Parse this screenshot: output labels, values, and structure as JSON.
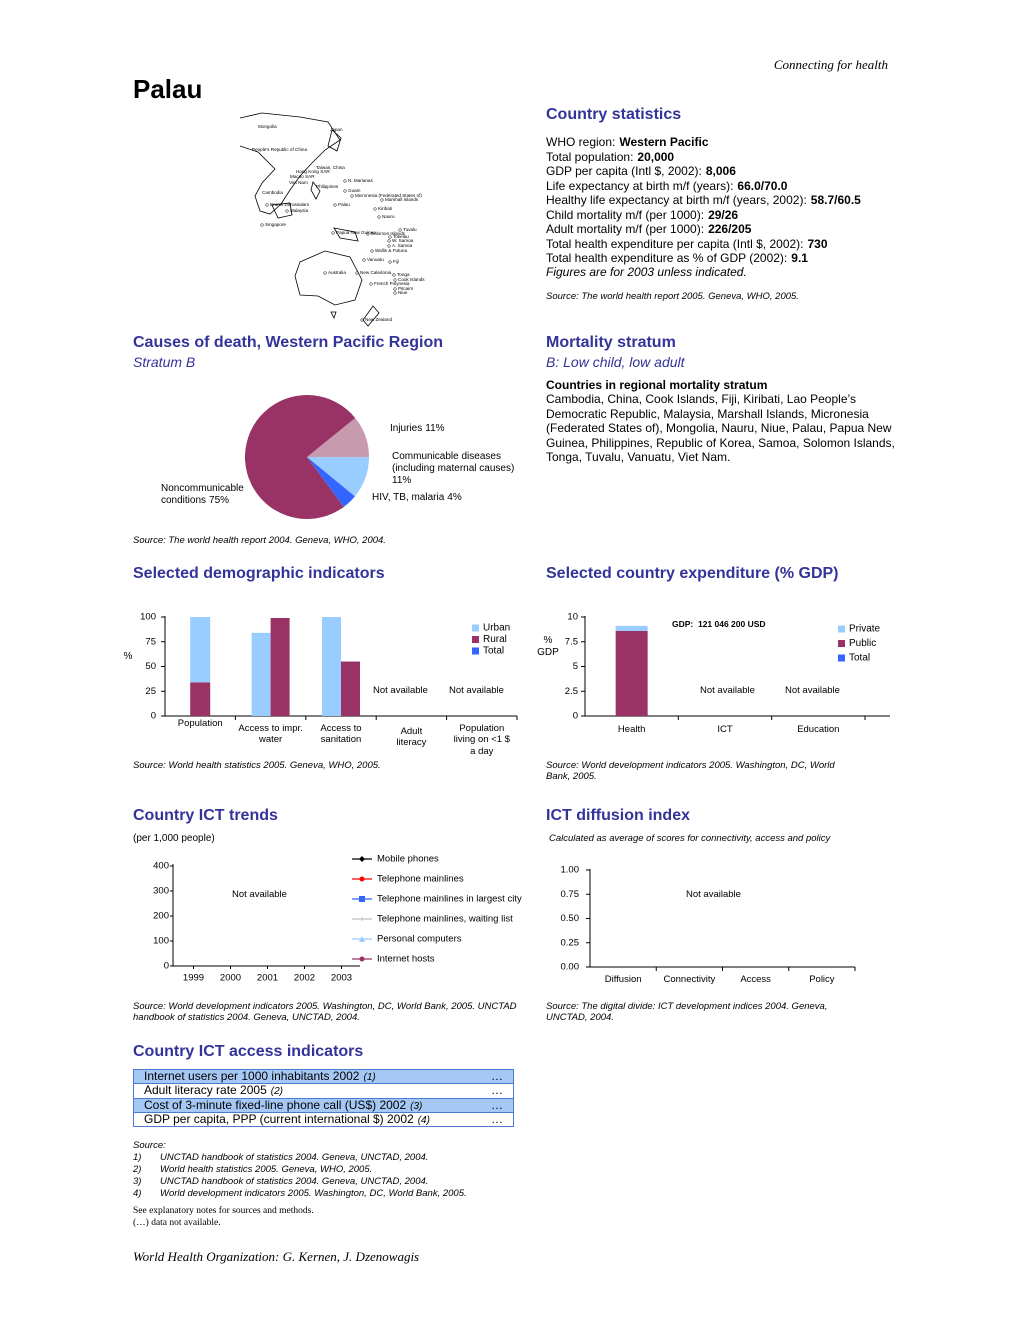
{
  "header": {
    "running_head": "Connecting for health",
    "title": "Palau"
  },
  "map": {
    "labels": [
      "Mongolia",
      "Japan",
      "People's Republic of China",
      "Taiwan, China",
      "Hong Kong SAR",
      "Macao SAR",
      "Viet Nam",
      "Cambodia",
      "Philippines",
      "N. Marianas",
      "Guam",
      "Micronesia (Federated States of)",
      "Marshall Islands",
      "Palau",
      "Brunei Darussalam",
      "Malaysia",
      "Kiribati",
      "Nauru",
      "Singapore",
      "Papua New Guinea",
      "Solomon Islands",
      "Tuvalu",
      "Tokelau",
      "W. Samoa",
      "A. Samoa",
      "Wallis & Futuna",
      "Vanuatu",
      "Fiji",
      "Australia",
      "New Caledonia",
      "Tonga",
      "Cook Islands",
      "French Polynesia",
      "Pitcairn",
      "Niue",
      "New Zealand"
    ]
  },
  "country_statistics": {
    "title": "Country statistics",
    "items": [
      {
        "label": "WHO region:",
        "value": "Western Pacific"
      },
      {
        "label": "Total population:",
        "value": "20,000"
      },
      {
        "label": "GDP per capita (Intl $, 2002):",
        "value": "8,006"
      },
      {
        "label": "Life expectancy at birth m/f (years):",
        "value": "66.0/70.0"
      },
      {
        "label": "Healthy life expectancy at birth m/f (years, 2002):",
        "value": "58.7/60.5"
      },
      {
        "label": "Child mortality m/f (per 1000):",
        "value": "29/26"
      },
      {
        "label": "Adult mortality m/f (per 1000):",
        "value": "226/205"
      },
      {
        "label": "Total health expenditure per capita (Intl $, 2002):",
        "value": "730"
      },
      {
        "label": "Total health expenditure as % of GDP (2002):",
        "value": "9.1"
      }
    ],
    "note": "Figures are for 2003 unless indicated.",
    "source": "Source: The world health report 2005. Geneva, WHO, 2005."
  },
  "mortality_stratum": {
    "title": "Mortality stratum",
    "subtitle": "B: Low child, low adult",
    "heading": "Countries in regional mortality stratum",
    "countries": "Cambodia, China, Cook Islands, Fiji, Kiribati, Lao People’s Democratic Republic, Malaysia, Marshall Islands, Micronesia (Federated States of), Mongolia, Nauru, Niue, Palau, Papua New Guinea, Philippines, Republic of Korea, Samoa, Solomon Islands, Tonga, Tuvalu, Vanuatu, Viet Nam."
  },
  "chart_data": [
    {
      "type": "pie",
      "title": "Causes of death, Western Pacific Region",
      "subtitle": "Stratum B",
      "categories": [
        "Injuries",
        "Communicable diseases (including maternal causes)",
        "HIV, TB, malaria",
        "Noncommunicable conditions"
      ],
      "values": [
        11,
        11,
        4,
        75
      ],
      "value_labels": [
        "11%",
        "11%",
        "4%",
        "75%"
      ],
      "colors": [
        "#c89aae",
        "#99ccff",
        "#3366ff",
        "#993366"
      ],
      "source": "Source: The world health report 2004. Geneva, WHO, 2004."
    },
    {
      "type": "bar",
      "title": "Selected demographic indicators",
      "ylabel": "%",
      "categories": [
        "Population",
        "Access to impr. water",
        "Access to sanitation",
        "Adult literacy",
        "Population living on <1 $ a day"
      ],
      "series": [
        {
          "name": "Urban",
          "color": "#99ccff",
          "values": [
            66,
            84,
            100,
            null,
            null
          ]
        },
        {
          "name": "Rural",
          "color": "#993366",
          "values": [
            34,
            99,
            55,
            null,
            null
          ]
        },
        {
          "name": "Total",
          "color": "#3366ff",
          "values": [
            null,
            null,
            null,
            null,
            null
          ]
        }
      ],
      "stacked": [
        true,
        false,
        false,
        false,
        false
      ],
      "ylim": [
        0,
        100
      ],
      "yticks": [
        0,
        25,
        50,
        75,
        100
      ],
      "annotations": [
        "Not available",
        "Not available"
      ],
      "source": "Source: World health statistics 2005. Geneva, WHO, 2005."
    },
    {
      "type": "bar",
      "title": "Selected country expenditure (% GDP)",
      "ylabel": "% GDP",
      "categories": [
        "Health",
        "ICT",
        "Education"
      ],
      "series": [
        {
          "name": "Private",
          "color": "#99ccff",
          "values": [
            0.5,
            null,
            null
          ]
        },
        {
          "name": "Public",
          "color": "#993366",
          "values": [
            8.6,
            null,
            null
          ]
        },
        {
          "name": "Total",
          "color": "#3366ff",
          "values": [
            null,
            null,
            null
          ]
        }
      ],
      "stacked": true,
      "ylim": [
        0,
        10
      ],
      "yticks": [
        0,
        2.5,
        5,
        7.5,
        10
      ],
      "annotations": [
        "GDP:  121 046 200 USD",
        "Not available",
        "Not available"
      ],
      "source": "Source: World development indicators 2005. Washington, DC, World Bank, 2005."
    },
    {
      "type": "line",
      "title": "Country ICT trends",
      "subtitle": "(per 1,000 people)",
      "x": [
        1999,
        2000,
        2001,
        2002,
        2003
      ],
      "xlim": [
        1998.5,
        2003.5
      ],
      "xticks": [
        1999,
        2000,
        2001,
        2002,
        2003
      ],
      "series": [
        {
          "name": "Mobile phones",
          "color": "#000000",
          "marker": "diamond",
          "values": [
            null,
            null,
            null,
            null,
            null
          ]
        },
        {
          "name": "Telephone mainlines",
          "color": "#ff0000",
          "marker": "circle",
          "values": [
            null,
            null,
            null,
            null,
            null
          ]
        },
        {
          "name": "Telephone mainlines in largest city",
          "color": "#3366ff",
          "marker": "square",
          "values": [
            null,
            null,
            null,
            null,
            null
          ]
        },
        {
          "name": "Telephone mainlines, waiting list",
          "color": "#c0c0c0",
          "marker": "plus",
          "values": [
            null,
            null,
            null,
            null,
            null
          ]
        },
        {
          "name": "Personal computers",
          "color": "#99ccff",
          "marker": "triangle",
          "values": [
            null,
            null,
            null,
            null,
            null
          ]
        },
        {
          "name": "Internet hosts",
          "color": "#993366",
          "marker": "circle",
          "values": [
            null,
            null,
            null,
            null,
            null
          ]
        }
      ],
      "ylim": [
        0,
        400
      ],
      "yticks": [
        0,
        100,
        200,
        300,
        400
      ],
      "annotations": [
        "Not available"
      ],
      "source": "Source: World development indicators 2005. Washington, DC, World Bank, 2005. UNCTAD handbook of statistics 2004. Geneva, UNCTAD, 2004."
    },
    {
      "type": "bar",
      "title": "ICT diffusion index",
      "subtitle": "Calculated as average of scores for connectivity, access and policy",
      "categories": [
        "Diffusion",
        "Connectivity",
        "Access",
        "Policy"
      ],
      "values": [
        null,
        null,
        null,
        null
      ],
      "color": "#993366",
      "ylim": [
        0,
        1
      ],
      "yticks": [
        {
          "value": 0,
          "label": "0.00"
        },
        {
          "value": 0.25,
          "label": "0.25"
        },
        {
          "value": 0.5,
          "label": "0.50"
        },
        {
          "value": 0.75,
          "label": "0.75"
        },
        {
          "value": 1,
          "label": "1.00"
        }
      ],
      "annotations": [
        "Not available"
      ],
      "source": "Source: The digital divide: ICT development indices 2004. Geneva, UNCTAD, 2004."
    }
  ],
  "ict_access": {
    "title": "Country ICT access indicators",
    "rows": [
      {
        "label": "Internet users per 1000 inhabitants 2002",
        "ref": "(1)",
        "value": "…"
      },
      {
        "label": "Adult literacy rate 2005",
        "ref": "(2)",
        "value": "…"
      },
      {
        "label": "Cost of 3-minute fixed-line phone call (US$) 2002",
        "ref": "(3)",
        "value": "…"
      },
      {
        "label": "GDP per capita, PPP (current international $) 2002",
        "ref": "(4)",
        "value": "…"
      }
    ]
  },
  "sources": {
    "heading": "Source:",
    "items": [
      {
        "number": "1)",
        "text": "UNCTAD handbook of statistics 2004. Geneva, UNCTAD, 2004."
      },
      {
        "number": "2)",
        "text": "World health statistics 2005. Geneva, WHO, 2005."
      },
      {
        "number": "3)",
        "text": "UNCTAD handbook of statistics 2004. Geneva, UNCTAD, 2004."
      },
      {
        "number": "4)",
        "text": "World development indicators 2005. Washington, DC, World Bank, 2005."
      }
    ]
  },
  "notes": [
    "See explanatory notes for sources and methods.",
    "(…) data not available."
  ],
  "footer": "World Health Organization: G. Kernen, J. Dzenowagis"
}
